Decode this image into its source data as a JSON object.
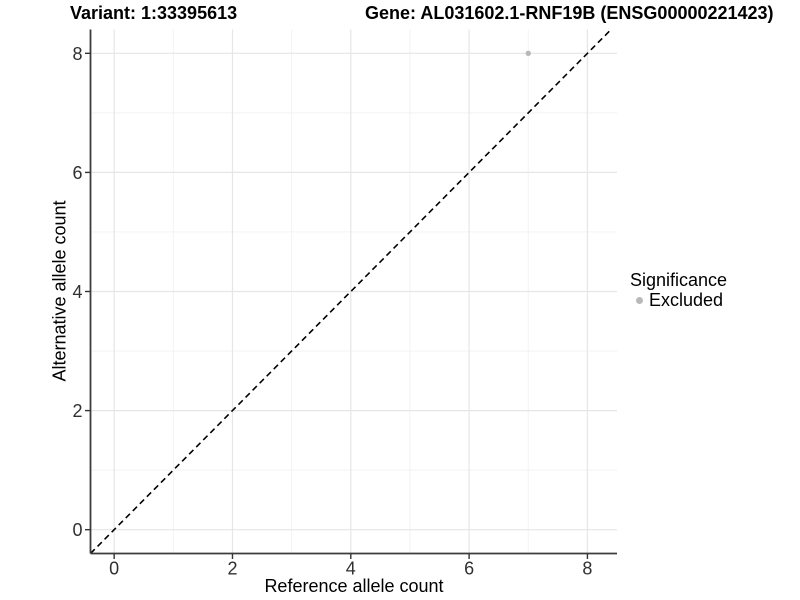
{
  "titles": {
    "variant": "Variant: 1:33395613",
    "gene": "Gene: AL031602.1-RNF19B (ENSG00000221423)"
  },
  "axes": {
    "x_label": "Reference allele count",
    "y_label": "Alternative allele count"
  },
  "legend": {
    "title": "Significance",
    "items": [
      {
        "label": "Excluded",
        "color": "#b9b9b9"
      }
    ]
  },
  "chart_data": {
    "type": "scatter",
    "title": "Variant: 1:33395613 — Gene: AL031602.1-RNF19B (ENSG00000221423)",
    "xlabel": "Reference allele count",
    "ylabel": "Alternative allele count",
    "xlim": [
      -0.4,
      8.5
    ],
    "ylim": [
      -0.4,
      8.4
    ],
    "x_ticks": [
      0,
      2,
      4,
      6,
      8
    ],
    "y_ticks": [
      0,
      2,
      4,
      6,
      8
    ],
    "x_minor_ticks": [
      1,
      3,
      5,
      7
    ],
    "y_minor_ticks": [
      1,
      3,
      5,
      7
    ],
    "grid": true,
    "legend_position": "right",
    "reference_line": {
      "type": "identity",
      "equation": "y = x",
      "style": "dashed"
    },
    "series": [
      {
        "name": "Excluded",
        "color": "#b9b9b9",
        "points": [
          {
            "x": 7,
            "y": 8
          }
        ]
      }
    ],
    "colors": {
      "background": "#ffffff",
      "grid_major": "#e6e6e6",
      "grid_minor": "#f2f2f2",
      "axis_line": "#3c3c3c",
      "tick_mark": "#333333",
      "tick_label": "#303030",
      "reference_line": "#000000",
      "excluded_point": "#b9b9b9"
    }
  }
}
